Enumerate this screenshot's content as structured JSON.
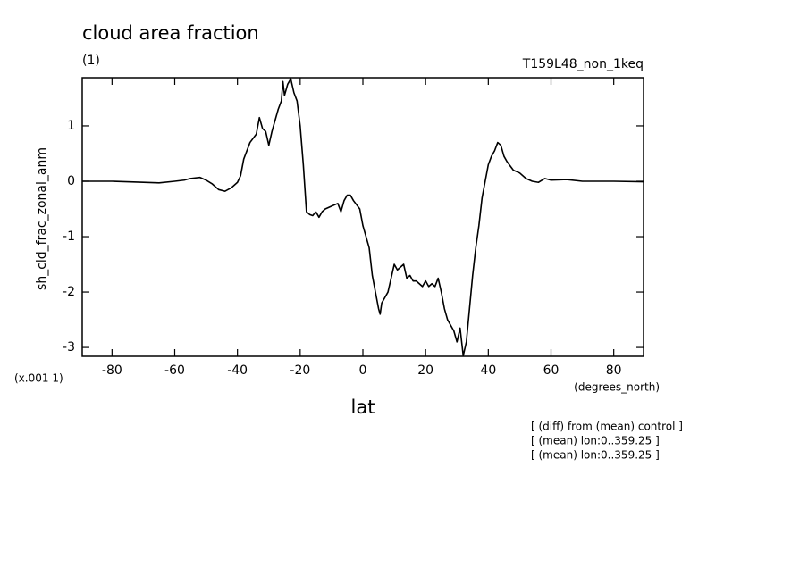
{
  "chart_data": {
    "type": "line",
    "title": "cloud area fraction",
    "subtitle": "(1)",
    "run_label": "T159L48_non_1keq",
    "y_label": "sh_cld_frac_zonal_anm",
    "y_scale_note": "(x.001 1)",
    "x_unit": "(degrees_north)",
    "x_label": "lat",
    "notes": [
      "[ (diff) from (mean) control ]",
      "[ (mean) lon:0..359.25 ]",
      "[ (mean) lon:0..359.25 ]"
    ],
    "xlim": [
      -89.5,
      89.5
    ],
    "ylim": [
      -3.16,
      1.87
    ],
    "xticks": [
      -80,
      -60,
      -40,
      -20,
      0,
      20,
      40,
      60,
      80
    ],
    "yticks": [
      -3,
      -2,
      -1,
      0,
      1
    ],
    "series": [
      {
        "color": "#000000",
        "x": [
          -89.5,
          -80,
          -70,
          -65,
          -60,
          -57,
          -55,
          -52,
          -50,
          -48,
          -46,
          -44,
          -42,
          -40,
          -39,
          -38,
          -36,
          -34,
          -33,
          -32,
          -31,
          -30,
          -29,
          -28,
          -27,
          -26,
          -25.5,
          -25,
          -24,
          -23,
          -22,
          -21,
          -20,
          -19,
          -18,
          -17,
          -16,
          -15,
          -14,
          -13,
          -12,
          -10,
          -8,
          -7,
          -6,
          -5,
          -4,
          -3,
          -1,
          0,
          1,
          2,
          3,
          4,
          5,
          5.5,
          6,
          7,
          8,
          9,
          10,
          11,
          12,
          13,
          14,
          15,
          16,
          17,
          18,
          19,
          20,
          21,
          22,
          23,
          24,
          25,
          26,
          27,
          28,
          29,
          30,
          31,
          32,
          33,
          34,
          35,
          36,
          37,
          38,
          39,
          40,
          41,
          42,
          43,
          44,
          45,
          46,
          48,
          50,
          52,
          54,
          56,
          58,
          60,
          65,
          70,
          80,
          89.5
        ],
        "values": [
          0,
          0,
          -0.02,
          -0.03,
          0,
          0.02,
          0.05,
          0.07,
          0.02,
          -0.05,
          -0.15,
          -0.18,
          -0.12,
          -0.02,
          0.1,
          0.4,
          0.7,
          0.85,
          1.15,
          0.95,
          0.9,
          0.65,
          0.9,
          1.1,
          1.3,
          1.45,
          1.8,
          1.55,
          1.75,
          1.85,
          1.6,
          1.45,
          1.0,
          0.3,
          -0.55,
          -0.6,
          -0.62,
          -0.55,
          -0.65,
          -0.55,
          -0.5,
          -0.45,
          -0.4,
          -0.55,
          -0.35,
          -0.25,
          -0.25,
          -0.35,
          -0.5,
          -0.8,
          -1.0,
          -1.2,
          -1.7,
          -2.0,
          -2.3,
          -2.4,
          -2.2,
          -2.1,
          -2.0,
          -1.75,
          -1.5,
          -1.6,
          -1.55,
          -1.5,
          -1.75,
          -1.7,
          -1.8,
          -1.8,
          -1.85,
          -1.9,
          -1.8,
          -1.9,
          -1.85,
          -1.9,
          -1.75,
          -2.0,
          -2.3,
          -2.5,
          -2.6,
          -2.7,
          -2.9,
          -2.65,
          -3.15,
          -2.9,
          -2.3,
          -1.7,
          -1.2,
          -0.8,
          -0.3,
          0,
          0.3,
          0.45,
          0.55,
          0.7,
          0.65,
          0.45,
          0.35,
          0.2,
          0.15,
          0.05,
          0,
          -0.02,
          0.05,
          0.02,
          0.03,
          0,
          0,
          -0.01
        ]
      }
    ]
  }
}
